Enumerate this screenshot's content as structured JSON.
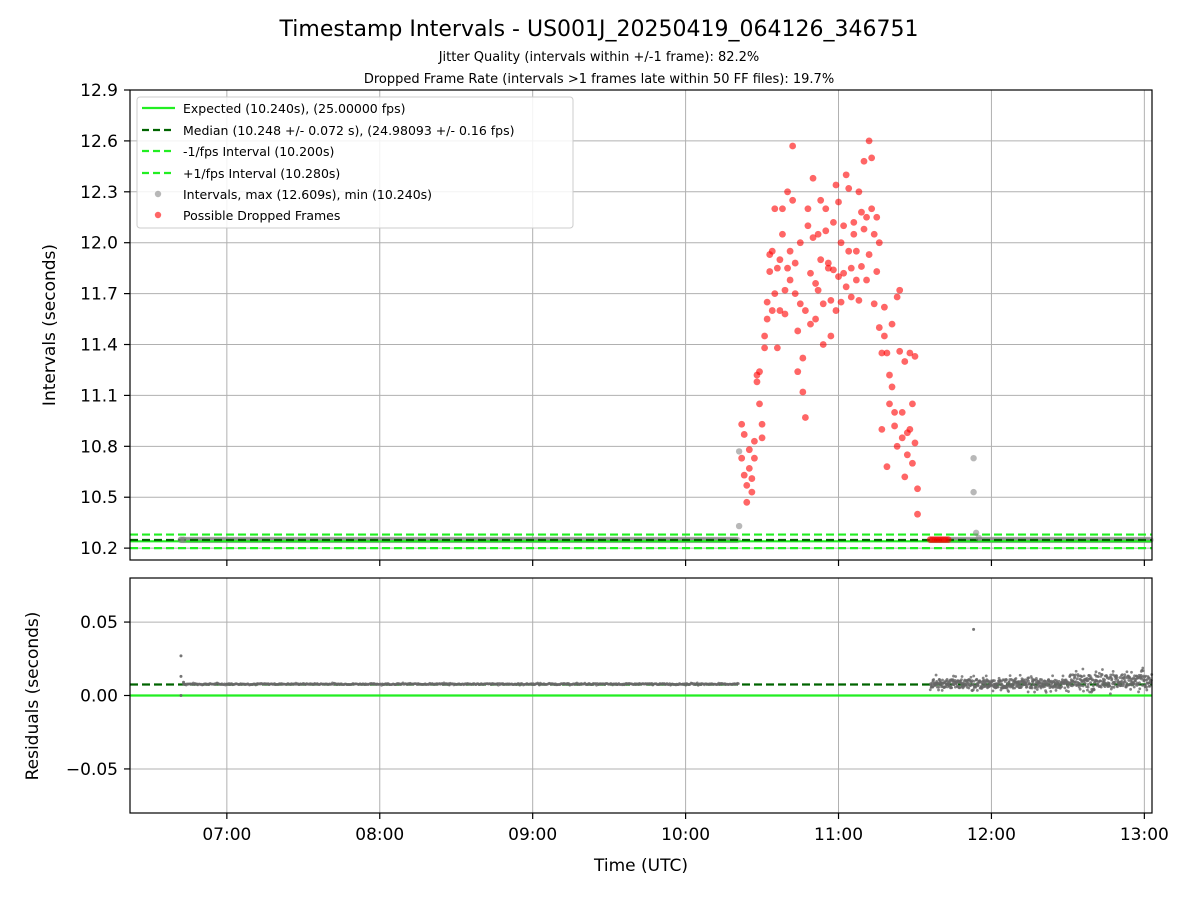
{
  "chart_data": [
    {
      "type": "scatter",
      "title": "Timestamp Intervals - US001J_20250419_064126_346751",
      "subtitles": [
        "Jitter Quality (intervals within +/-1 frame): 82.2%",
        "Dropped Frame Rate (intervals >1 frames late within 50 FF files): 19.7%"
      ],
      "ylabel": "Intervals (seconds)",
      "xlim": [
        "06:22",
        "13:03"
      ],
      "ylim": [
        10.13,
        12.9
      ],
      "yticks": [
        "10.2",
        "10.5",
        "10.8",
        "11.1",
        "11.4",
        "11.7",
        "12.0",
        "12.3",
        "12.6",
        "12.9"
      ],
      "grid": true,
      "legend": "top-left",
      "lines": [
        {
          "name": "Expected (10.240s), (25.00000 fps)",
          "y": 10.24,
          "color": "#22ee22",
          "style": "solid"
        },
        {
          "name": "Median (10.248 +/- 0.072 s), (24.98093 +/- 0.16 fps)",
          "y": 10.248,
          "color": "#006400",
          "style": "dashed"
        },
        {
          "name": "-1/fps Interval (10.200s)",
          "y": 10.2,
          "color": "#22ee22",
          "style": "dashed"
        },
        {
          "name": "+1/fps Interval (10.280s)",
          "y": 10.28,
          "color": "#22ee22",
          "style": "dashed"
        }
      ],
      "series": [
        {
          "name": "Intervals, max (12.609s), min (10.240s)",
          "color": "#888888",
          "points": [
            [
              "06:42",
              10.25
            ],
            [
              "06:43",
              10.25
            ],
            [
              "10:21",
              10.77
            ],
            [
              "10:21",
              10.33
            ],
            [
              "11:53",
              10.73
            ],
            [
              "11:53",
              10.53
            ],
            [
              "11:54",
              10.29
            ],
            [
              "11:55",
              10.26
            ]
          ],
          "bands": [
            {
              "from": "06:42",
              "to": "10:21",
              "y": 10.248
            },
            {
              "from": "11:36",
              "to": "13:03",
              "y": 10.248
            }
          ]
        },
        {
          "name": "Possible Dropped Frames",
          "color": "#ff0000",
          "points": [
            [
              "10:22",
              10.93
            ],
            [
              "10:22",
              10.73
            ],
            [
              "10:23",
              10.87
            ],
            [
              "10:23",
              10.63
            ],
            [
              "10:24",
              10.57
            ],
            [
              "10:24",
              10.47
            ],
            [
              "10:25",
              10.78
            ],
            [
              "10:25",
              10.67
            ],
            [
              "10:26",
              10.61
            ],
            [
              "10:26",
              10.53
            ],
            [
              "10:27",
              10.83
            ],
            [
              "10:27",
              10.73
            ],
            [
              "10:28",
              11.22
            ],
            [
              "10:28",
              11.18
            ],
            [
              "10:29",
              11.24
            ],
            [
              "10:29",
              11.05
            ],
            [
              "10:30",
              10.93
            ],
            [
              "10:30",
              10.85
            ],
            [
              "10:31",
              11.38
            ],
            [
              "10:31",
              11.45
            ],
            [
              "10:32",
              11.65
            ],
            [
              "10:32",
              11.55
            ],
            [
              "10:33",
              11.83
            ],
            [
              "10:33",
              11.93
            ],
            [
              "10:34",
              11.6
            ],
            [
              "10:34",
              11.95
            ],
            [
              "10:35",
              12.2
            ],
            [
              "10:35",
              11.7
            ],
            [
              "10:36",
              11.85
            ],
            [
              "10:36",
              11.38
            ],
            [
              "10:37",
              11.6
            ],
            [
              "10:37",
              11.9
            ],
            [
              "10:38",
              12.2
            ],
            [
              "10:38",
              12.05
            ],
            [
              "10:39",
              11.72
            ],
            [
              "10:39",
              11.58
            ],
            [
              "10:40",
              11.85
            ],
            [
              "10:40",
              12.3
            ],
            [
              "10:41",
              11.95
            ],
            [
              "10:41",
              11.78
            ],
            [
              "10:42",
              12.25
            ],
            [
              "10:42",
              12.57
            ],
            [
              "10:43",
              11.7
            ],
            [
              "10:43",
              11.88
            ],
            [
              "10:44",
              11.48
            ],
            [
              "10:44",
              11.24
            ],
            [
              "10:45",
              12.0
            ],
            [
              "10:45",
              11.64
            ],
            [
              "10:46",
              11.32
            ],
            [
              "10:46",
              11.12
            ],
            [
              "10:47",
              10.97
            ],
            [
              "10:47",
              11.6
            ],
            [
              "10:48",
              12.1
            ],
            [
              "10:48",
              12.2
            ],
            [
              "10:49",
              11.82
            ],
            [
              "10:49",
              11.52
            ],
            [
              "10:50",
              12.03
            ],
            [
              "10:50",
              12.38
            ],
            [
              "10:51",
              11.76
            ],
            [
              "10:51",
              11.55
            ],
            [
              "10:52",
              11.72
            ],
            [
              "10:52",
              12.05
            ],
            [
              "10:53",
              12.25
            ],
            [
              "10:53",
              11.9
            ],
            [
              "10:54",
              11.64
            ],
            [
              "10:54",
              11.4
            ],
            [
              "10:55",
              12.2
            ],
            [
              "10:55",
              12.07
            ],
            [
              "10:56",
              11.88
            ],
            [
              "10:56",
              11.85
            ],
            [
              "10:57",
              11.45
            ],
            [
              "10:57",
              11.66
            ],
            [
              "10:58",
              12.12
            ],
            [
              "10:58",
              11.84
            ],
            [
              "10:59",
              12.34
            ],
            [
              "10:59",
              11.6
            ],
            [
              "11:00",
              11.8
            ],
            [
              "11:00",
              12.24
            ],
            [
              "11:01",
              12.0
            ],
            [
              "11:01",
              11.65
            ],
            [
              "11:02",
              12.1
            ],
            [
              "11:02",
              11.82
            ],
            [
              "11:03",
              12.4
            ],
            [
              "11:03",
              11.74
            ],
            [
              "11:04",
              12.32
            ],
            [
              "11:04",
              11.95
            ],
            [
              "11:05",
              11.68
            ],
            [
              "11:05",
              11.85
            ],
            [
              "11:06",
              12.12
            ],
            [
              "11:06",
              12.05
            ],
            [
              "11:07",
              11.78
            ],
            [
              "11:07",
              11.95
            ],
            [
              "11:08",
              12.3
            ],
            [
              "11:08",
              11.66
            ],
            [
              "11:09",
              12.18
            ],
            [
              "11:09",
              11.86
            ],
            [
              "11:10",
              12.48
            ],
            [
              "11:10",
              12.08
            ],
            [
              "11:11",
              11.78
            ],
            [
              "11:11",
              12.15
            ],
            [
              "11:12",
              12.6
            ],
            [
              "11:12",
              11.93
            ],
            [
              "11:13",
              12.5
            ],
            [
              "11:13",
              12.2
            ],
            [
              "11:14",
              11.64
            ],
            [
              "11:14",
              12.05
            ],
            [
              "11:15",
              12.15
            ],
            [
              "11:15",
              11.83
            ],
            [
              "11:16",
              12.0
            ],
            [
              "11:16",
              11.5
            ],
            [
              "11:17",
              11.35
            ],
            [
              "11:17",
              10.9
            ],
            [
              "11:18",
              11.45
            ],
            [
              "11:18",
              11.62
            ],
            [
              "11:19",
              11.35
            ],
            [
              "11:19",
              10.68
            ],
            [
              "11:20",
              11.22
            ],
            [
              "11:20",
              11.05
            ],
            [
              "11:21",
              11.52
            ],
            [
              "11:21",
              11.15
            ],
            [
              "11:22",
              10.92
            ],
            [
              "11:22",
              11.0
            ],
            [
              "11:23",
              11.68
            ],
            [
              "11:23",
              10.8
            ],
            [
              "11:24",
              11.72
            ],
            [
              "11:24",
              11.36
            ],
            [
              "11:25",
              11.0
            ],
            [
              "11:25",
              10.85
            ],
            [
              "11:26",
              11.3
            ],
            [
              "11:26",
              10.62
            ],
            [
              "11:27",
              10.75
            ],
            [
              "11:27",
              10.88
            ],
            [
              "11:28",
              11.35
            ],
            [
              "11:28",
              10.9
            ],
            [
              "11:29",
              11.05
            ],
            [
              "11:29",
              10.7
            ],
            [
              "11:30",
              11.33
            ],
            [
              "11:30",
              10.82
            ],
            [
              "11:31",
              10.4
            ],
            [
              "11:31",
              10.55
            ],
            [
              "11:36",
              10.25
            ],
            [
              "11:37",
              10.25
            ],
            [
              "11:38",
              10.25
            ],
            [
              "11:39",
              10.25
            ],
            [
              "11:40",
              10.25
            ],
            [
              "11:41",
              10.25
            ],
            [
              "11:42",
              10.25
            ],
            [
              "11:43",
              10.25
            ]
          ]
        }
      ]
    },
    {
      "type": "scatter",
      "xlabel": "Time (UTC)",
      "ylabel": "Residuals (seconds)",
      "xlim": [
        "06:22",
        "13:03"
      ],
      "ylim": [
        -0.08,
        0.08
      ],
      "yticks": [
        "−0.05",
        "0.00",
        "0.05"
      ],
      "xticks": [
        "07:00",
        "08:00",
        "09:00",
        "10:00",
        "11:00",
        "12:00",
        "13:00"
      ],
      "grid": true,
      "lines": [
        {
          "y": 0.0,
          "color": "#22ee22",
          "style": "solid"
        },
        {
          "y": 0.0075,
          "color": "#006400",
          "style": "dashed"
        }
      ],
      "series": [
        {
          "color": "#666666",
          "points": [
            [
              "06:42",
              0.027
            ],
            [
              "06:42",
              0.013
            ],
            [
              "06:43",
              0.009
            ],
            [
              "06:42",
              0.0
            ],
            [
              "11:53",
              0.045
            ]
          ],
          "bands": [
            {
              "from": "06:43",
              "to": "10:21",
              "center": 0.0078,
              "spread": 0.0008
            },
            {
              "from": "11:36",
              "to": "12:30",
              "center": 0.008,
              "spread": 0.006
            },
            {
              "from": "12:30",
              "to": "13:03",
              "center": 0.01,
              "spread": 0.009
            }
          ]
        }
      ]
    }
  ]
}
